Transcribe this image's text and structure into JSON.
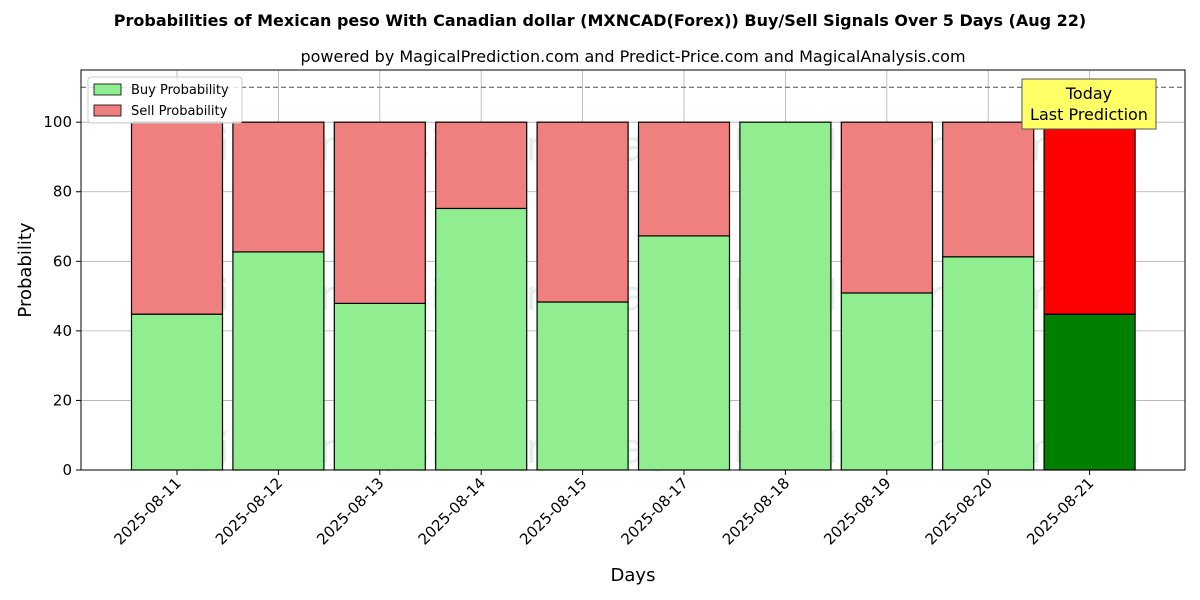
{
  "chart_data": {
    "type": "bar",
    "stacked": true,
    "title": "Probabilities of Mexican peso With Canadian dollar (MXNCAD(Forex)) Buy/Sell Signals Over 5 Days (Aug 22)",
    "subtitle": "powered by MagicalPrediction.com and Predict-Price.com and MagicalAnalysis.com",
    "xlabel": "Days",
    "ylabel": "Probability",
    "ylim": [
      0,
      115
    ],
    "yticks": [
      0,
      20,
      40,
      60,
      80,
      100
    ],
    "grid": true,
    "reference_line": 110,
    "legend_position": "top-left",
    "categories": [
      "2025-08-11",
      "2025-08-12",
      "2025-08-13",
      "2025-08-14",
      "2025-08-15",
      "2025-08-17",
      "2025-08-18",
      "2025-08-19",
      "2025-08-20",
      "2025-08-21"
    ],
    "series": [
      {
        "name": "Buy Probability",
        "color": "#90ee90",
        "values": [
          44.8,
          62.7,
          47.9,
          75.2,
          48.3,
          67.3,
          100.0,
          50.9,
          61.3,
          44.8
        ]
      },
      {
        "name": "Sell Probability",
        "color": "#f08080",
        "values": [
          55.2,
          37.3,
          52.1,
          24.8,
          51.7,
          32.7,
          0.0,
          49.1,
          38.7,
          55.2
        ]
      }
    ],
    "highlight": {
      "index": 9,
      "buy_color": "#008000",
      "sell_color": "#ff0000"
    },
    "annotation": {
      "lines": [
        "Today",
        "Last Prediction"
      ],
      "color": "#ffff66"
    },
    "watermarks": [
      "MagicalAnalysis.com",
      "MagicalPrediction.com"
    ]
  }
}
